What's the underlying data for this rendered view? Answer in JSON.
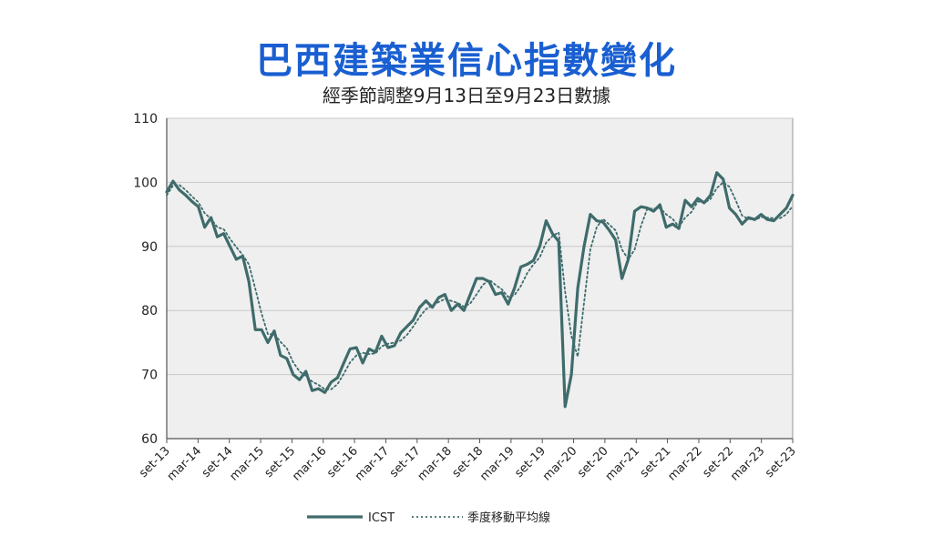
{
  "title": "巴西建築業信心指數變化",
  "subtitle": "經季節調整9月13日至9月23日數據",
  "colors": {
    "title": "#1a5fd1",
    "series": "#3f6b6b",
    "grid": "#c8c8c8",
    "plot_bg": "#efefef"
  },
  "chart_data": {
    "type": "line",
    "ylim": [
      60,
      110
    ],
    "yticks": [
      60,
      70,
      80,
      90,
      100,
      110
    ],
    "grid": true,
    "legend_position": "bottom",
    "xticks": [
      "set-13",
      "mar-14",
      "set-14",
      "mar-15",
      "set-15",
      "mar-16",
      "set-16",
      "mar-17",
      "set-17",
      "mar-18",
      "set-18",
      "mar-19",
      "set-19",
      "mar-20",
      "set-20",
      "mar-21",
      "set-21",
      "mar-22",
      "set-22",
      "mar-23",
      "set-23"
    ],
    "series": [
      {
        "name": "ICST",
        "style": "solid",
        "values": [
          98.5,
          100.2,
          98.8,
          98.0,
          97.0,
          96.2,
          93.0,
          94.5,
          91.5,
          92.0,
          90.0,
          88.0,
          88.5,
          84.5,
          77.0,
          77.0,
          75.0,
          76.8,
          73.0,
          72.5,
          70.0,
          69.2,
          70.5,
          67.5,
          67.8,
          67.2,
          68.8,
          69.5,
          71.8,
          74.0,
          74.2,
          71.8,
          74.0,
          73.5,
          76.0,
          74.2,
          74.5,
          76.5,
          77.5,
          78.5,
          80.5,
          81.5,
          80.5,
          82.0,
          82.5,
          80.0,
          81.0,
          80.0,
          82.5,
          85.0,
          85.0,
          84.5,
          82.5,
          82.8,
          81.0,
          83.5,
          86.8,
          87.2,
          87.8,
          90.0,
          94.0,
          92.0,
          90.8,
          65.0,
          70.0,
          83.5,
          90.0,
          95.0,
          94.0,
          93.8,
          92.5,
          91.0,
          85.0,
          88.0,
          95.5,
          96.2,
          96.0,
          95.5,
          96.5,
          93.0,
          93.5,
          92.8,
          97.2,
          96.2,
          97.5,
          96.8,
          98.0,
          101.5,
          100.5,
          96.0,
          95.0,
          93.5,
          94.5,
          94.2,
          95.0,
          94.2,
          94.0,
          95.0,
          96.0,
          98.0
        ]
      },
      {
        "name": "季度移動平均線",
        "style": "dotted",
        "values": [
          98.0,
          99.5,
          99.6,
          98.8,
          97.8,
          96.9,
          95.2,
          94.3,
          93.0,
          92.7,
          91.2,
          89.9,
          88.7,
          87.2,
          83.4,
          79.5,
          76.3,
          76.3,
          75.1,
          74.1,
          71.9,
          70.5,
          69.8,
          68.9,
          68.4,
          67.7,
          67.7,
          68.5,
          70.1,
          71.9,
          73.0,
          73.4,
          73.2,
          73.3,
          74.4,
          74.8,
          75.0,
          75.3,
          76.2,
          77.5,
          79.0,
          80.2,
          80.8,
          81.3,
          81.8,
          81.5,
          81.2,
          80.6,
          81.1,
          82.5,
          84.0,
          84.8,
          84.0,
          83.3,
          82.1,
          82.4,
          83.8,
          85.8,
          87.2,
          88.3,
          90.6,
          91.6,
          92.2,
          83.0,
          76.0,
          72.8,
          81.2,
          89.5,
          93.0,
          94.3,
          93.4,
          92.5,
          89.5,
          88.0,
          89.5,
          93.2,
          95.9,
          95.9,
          96.0,
          95.0,
          94.3,
          93.1,
          94.5,
          95.4,
          97.0,
          96.8,
          97.4,
          99.1,
          100.0,
          99.3,
          97.2,
          94.8,
          94.3,
          94.1,
          94.6,
          94.5,
          94.4,
          94.4,
          95.0,
          96.3
        ]
      }
    ]
  }
}
